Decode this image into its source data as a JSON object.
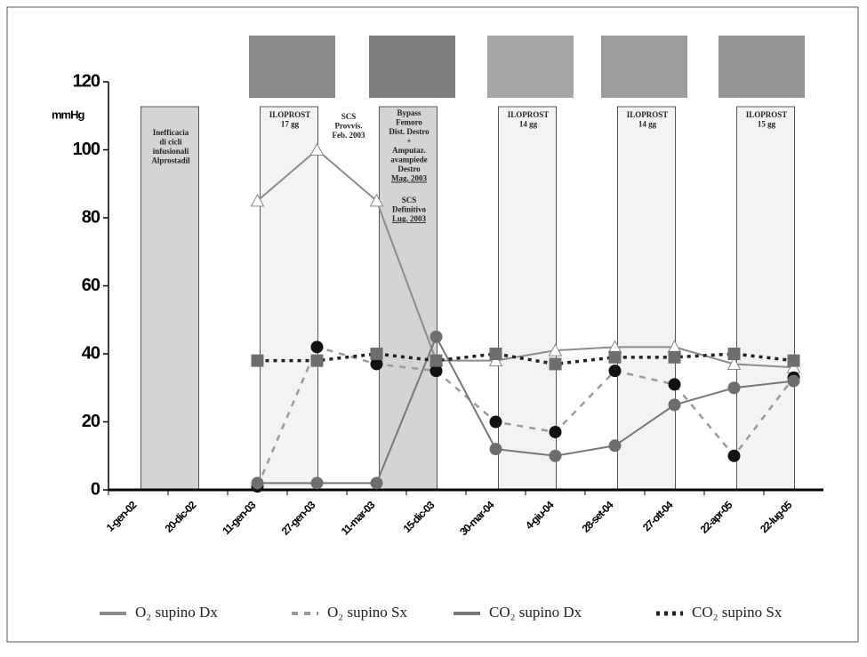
{
  "chart_data": {
    "type": "line",
    "y_label": "mmHg",
    "categories": [
      "1-gen-02",
      "20-dic-02",
      "11-gen-03",
      "27-gen-03",
      "11-mar-03",
      "15-dic-03",
      "30-mar-04",
      "4-giu-04",
      "28-set-04",
      "27-ott-04",
      "22-apr-05",
      "22-lug-05"
    ],
    "series": [
      {
        "name": "O₂ supino Dx",
        "color": "#8c8c8c",
        "dash": "solid",
        "marker": "triangle",
        "marker_color": "#ffffff",
        "values": [
          null,
          null,
          85,
          100,
          85,
          38,
          38,
          41,
          42,
          42,
          37,
          36
        ]
      },
      {
        "name": "O₂ supino Sx",
        "color": "#9a9a9a",
        "dash": "dashed",
        "marker": "circle",
        "marker_color": "#111111",
        "values": [
          null,
          null,
          1,
          42,
          37,
          35,
          20,
          17,
          35,
          31,
          10,
          33
        ]
      },
      {
        "name": "CO₂ supino Dx",
        "color": "#777777",
        "dash": "solid",
        "marker": "circle",
        "marker_color": "#6e6e6e",
        "values": [
          null,
          null,
          2,
          2,
          2,
          45,
          12,
          10,
          13,
          25,
          30,
          32
        ]
      },
      {
        "name": "CO₂ supino Sx",
        "color": "#222222",
        "dash": "dotted",
        "marker": "square",
        "marker_color": "#6e6e6e",
        "values": [
          null,
          null,
          38,
          38,
          40,
          38,
          40,
          37,
          39,
          39,
          40,
          38
        ]
      }
    ],
    "ylim": [
      0,
      120
    ],
    "yticks": [
      0,
      20,
      40,
      60,
      80,
      100,
      120
    ],
    "annotations": [
      {
        "lines": [
          "Inefficacia",
          "di cicli",
          "infusionali",
          "Alprostadil"
        ]
      },
      {
        "lines": [
          "ILOPROST",
          "17 gg"
        ]
      },
      {
        "lines": [
          "SCS",
          "Provvis.",
          "Feb. 2003"
        ]
      },
      {
        "lines": [
          "Bypass",
          "Femoro",
          "Dist. Destro",
          "+",
          "Amputaz.",
          "avampiede",
          "Destro",
          "Mag. 2003"
        ]
      },
      {
        "lines": [
          "SCS",
          "Definitivo",
          "Lug. 2003"
        ]
      },
      {
        "lines": [
          "ILOPROST",
          "14 gg"
        ]
      },
      {
        "lines": [
          "ILOPROST",
          "14 gg"
        ]
      },
      {
        "lines": [
          "ILOPROST",
          "15 gg"
        ]
      }
    ]
  }
}
